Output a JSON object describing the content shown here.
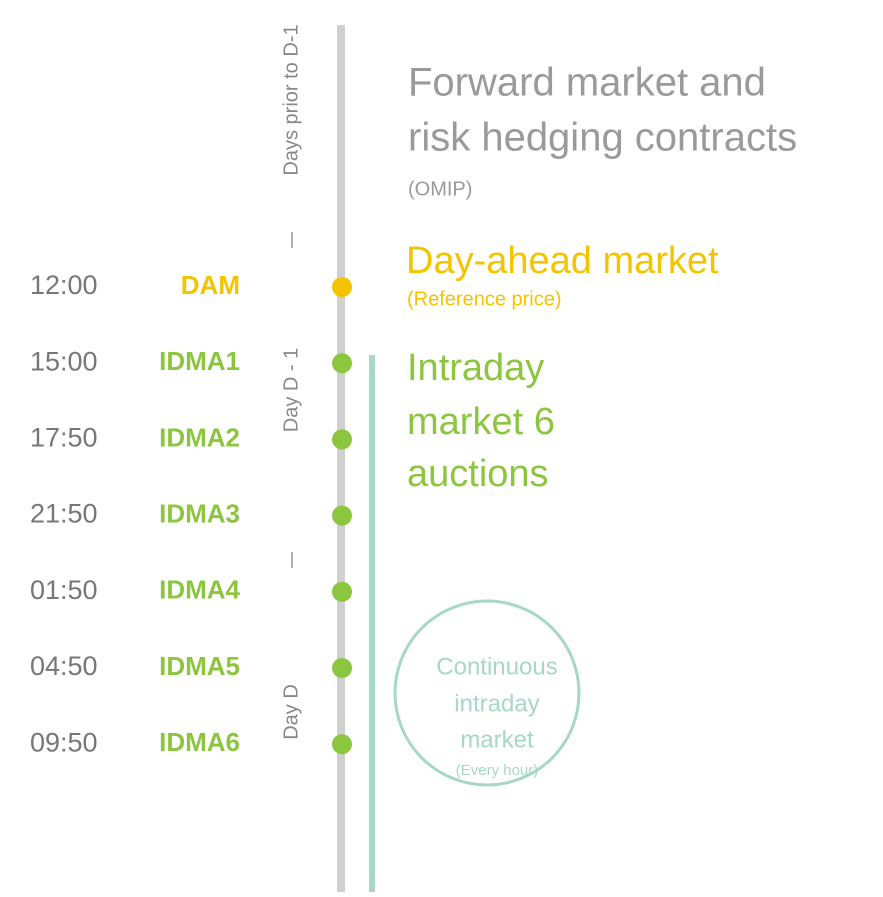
{
  "periods": [
    {
      "label": "Days prior to D-1"
    },
    {
      "label": "Day D - 1"
    },
    {
      "label": "Day D"
    }
  ],
  "events": [
    {
      "time": "12:00",
      "label": "DAM"
    },
    {
      "time": "15:00",
      "label": "IDMA1"
    },
    {
      "time": "17:50",
      "label": "IDMA2"
    },
    {
      "time": "21:50",
      "label": "IDMA3"
    },
    {
      "time": "01:50",
      "label": "IDMA4"
    },
    {
      "time": "04:50",
      "label": "IDMA5"
    },
    {
      "time": "09:50",
      "label": "IDMA6"
    }
  ],
  "forward": {
    "lines": [
      "Forward market and",
      "risk hedging contracts"
    ],
    "note": "(OMIP)"
  },
  "day_ahead": {
    "title": "Day-ahead market",
    "note": "(Reference price)"
  },
  "intraday": {
    "lines": [
      "Intraday",
      "market 6",
      "auctions"
    ]
  },
  "continuous": {
    "lines": [
      "Continuous",
      "intraday",
      "market"
    ],
    "note": "(Every hour)"
  }
}
